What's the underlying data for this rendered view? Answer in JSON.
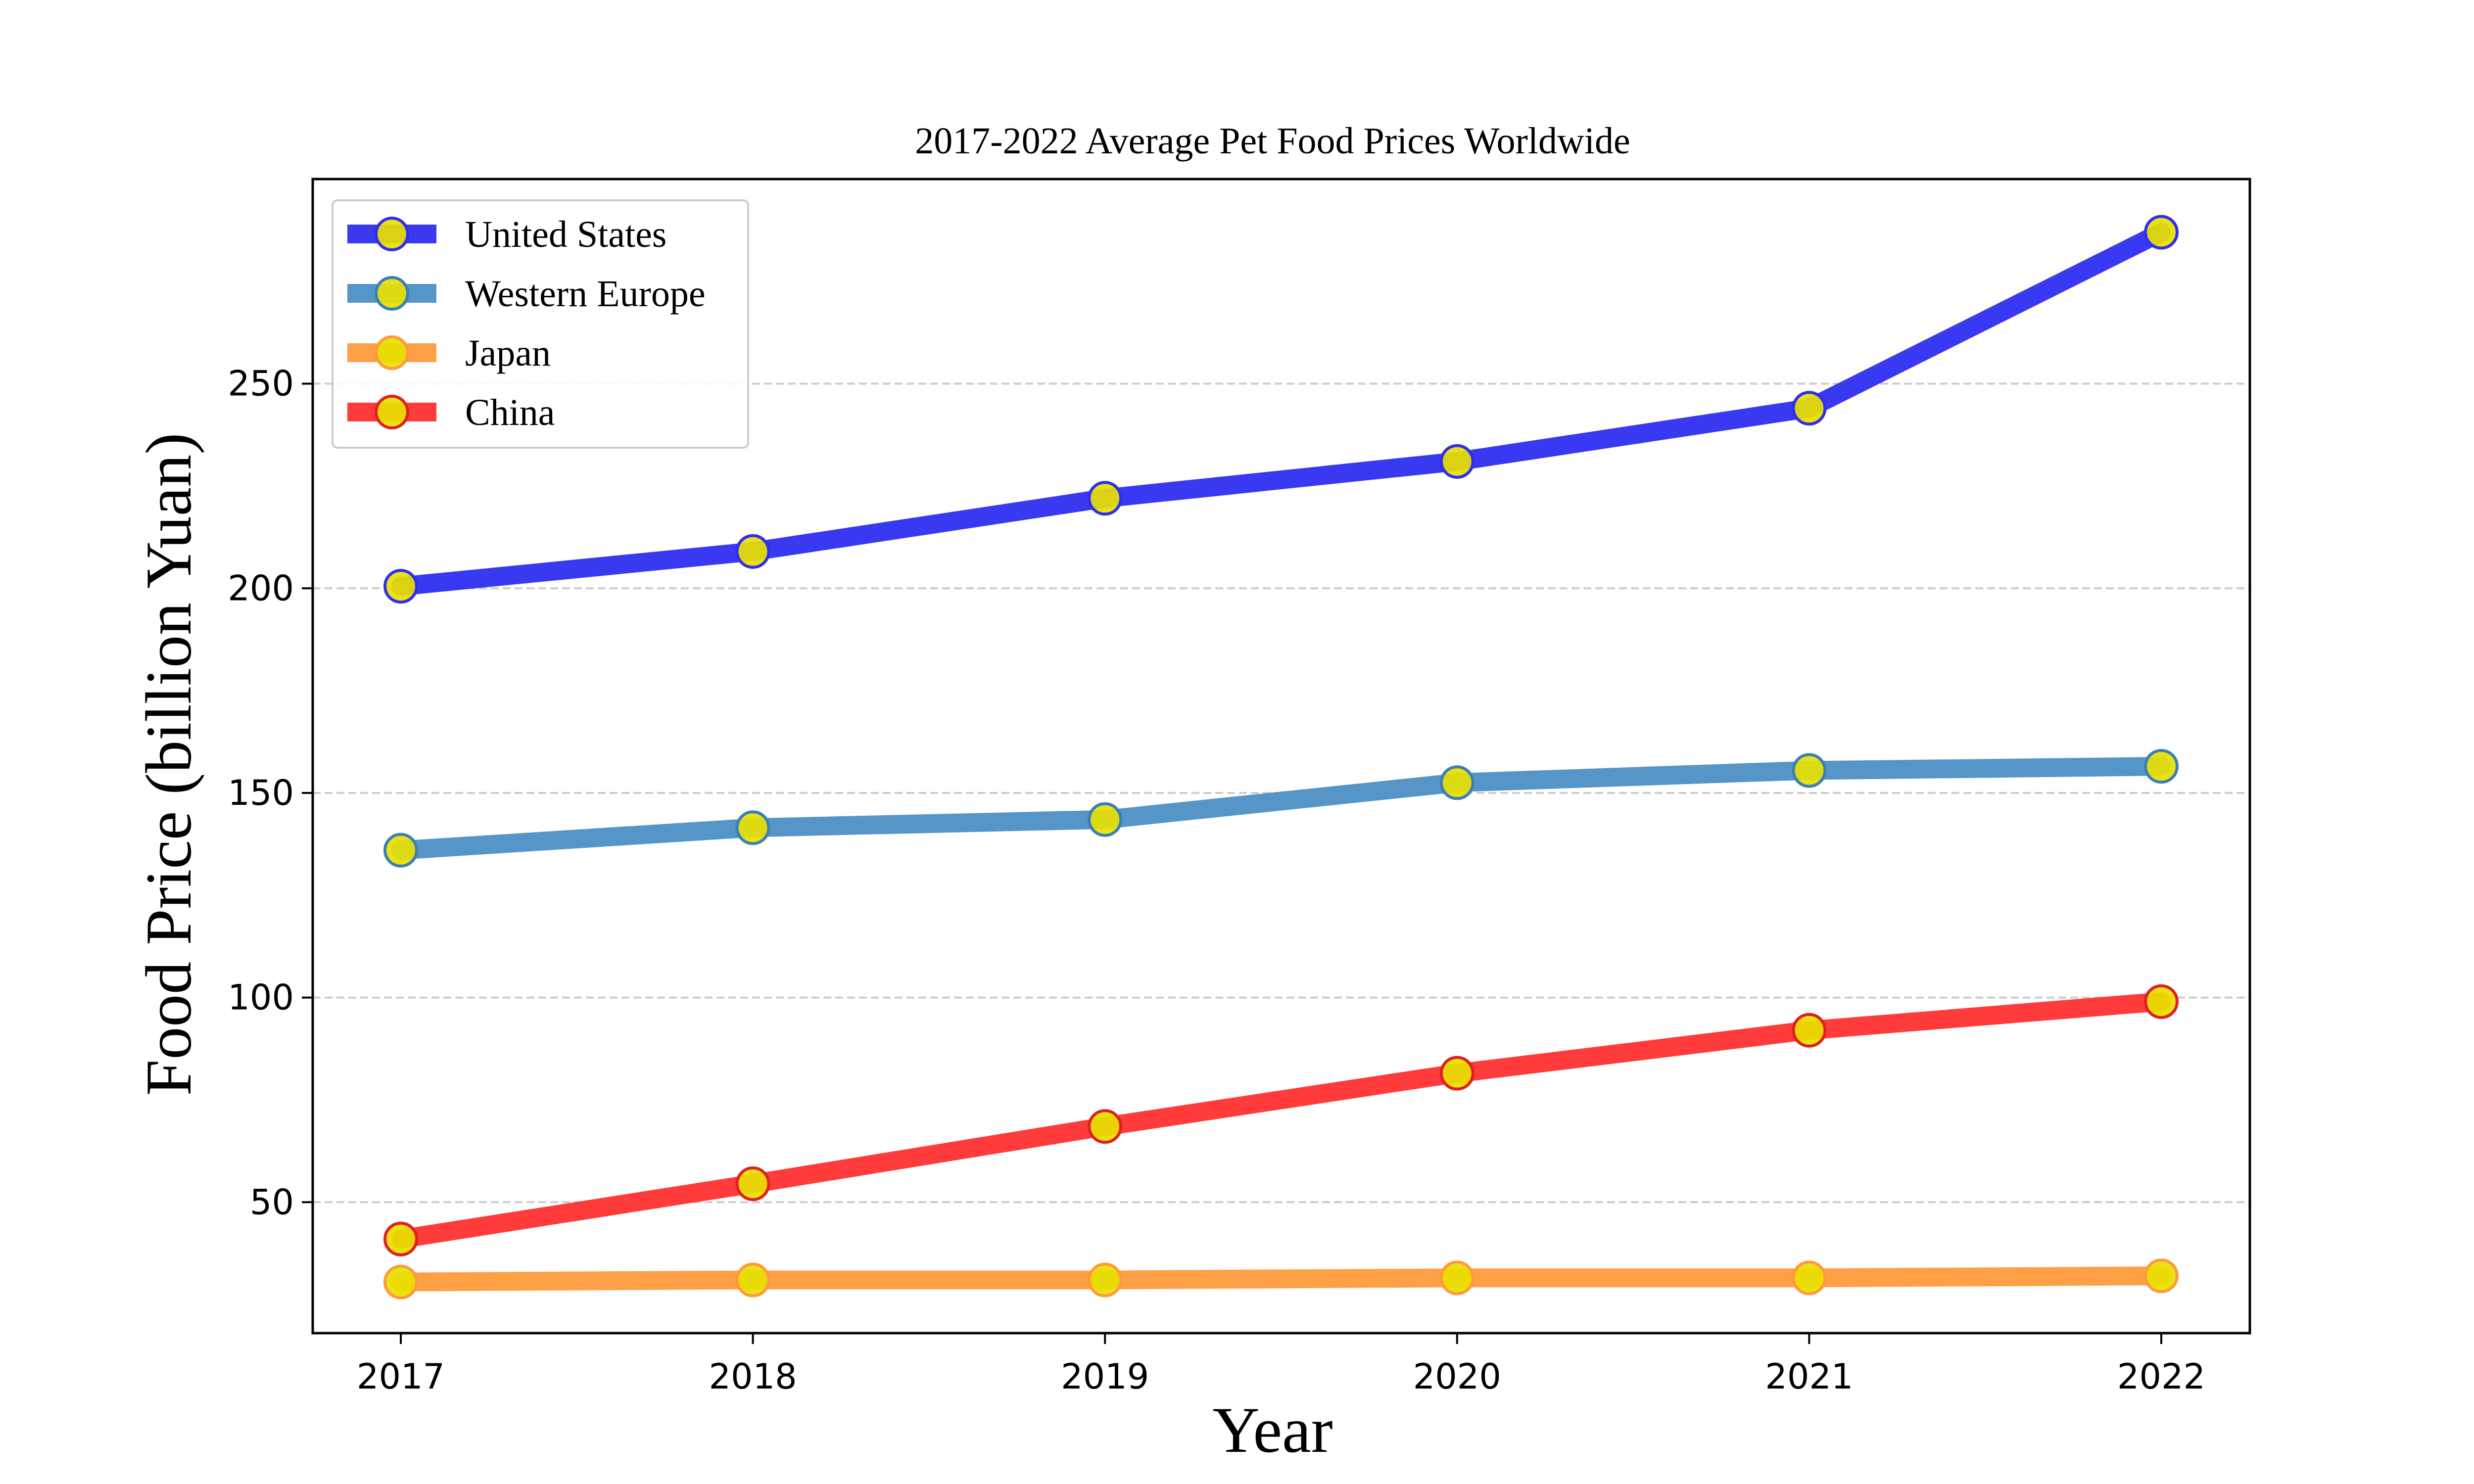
{
  "chart_data": {
    "type": "line",
    "title": "2017-2022 Average Pet Food Prices Worldwide",
    "xlabel": "Year",
    "ylabel": "Food Price (billion Yuan)",
    "x": [
      "2017",
      "2018",
      "2019",
      "2020",
      "2021",
      "2022"
    ],
    "ylim": [
      18,
      300
    ],
    "yticks": [
      "50",
      "100",
      "150",
      "200",
      "250"
    ],
    "grid": "horizontal dashed",
    "legend_position": "top-left",
    "marker_fill": "#e8e000",
    "series": [
      {
        "name": "United States",
        "color": "#2e2ef0",
        "edge": "#2e2ef0",
        "values": [
          200.5,
          209.0,
          222.0,
          231.0,
          244.0,
          287.0
        ]
      },
      {
        "name": "Western Europe",
        "color": "#4c8fc4",
        "edge": "#3a7fb8",
        "values": [
          136.0,
          141.5,
          143.5,
          152.5,
          155.5,
          156.5
        ]
      },
      {
        "name": "Japan",
        "color": "#ff9a3c",
        "edge": "#ff9a3c",
        "values": [
          30.5,
          31.0,
          31.0,
          31.5,
          31.5,
          32.0
        ]
      },
      {
        "name": "China",
        "color": "#ff3030",
        "edge": "#e02020",
        "values": [
          41.0,
          54.5,
          68.5,
          81.5,
          92.0,
          99.0
        ]
      }
    ]
  }
}
